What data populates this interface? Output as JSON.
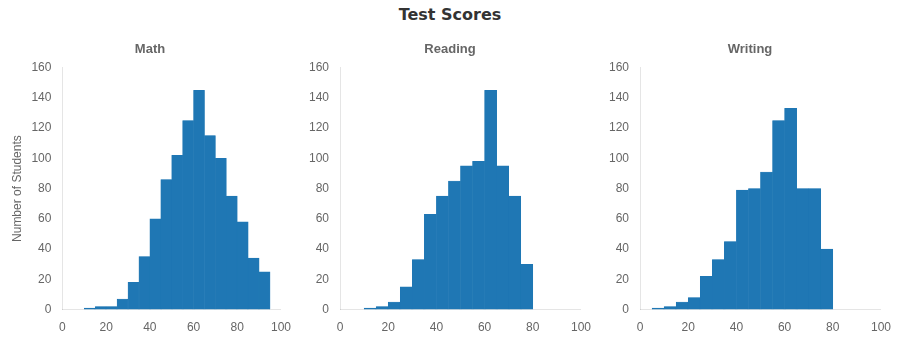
{
  "title": "Test Scores",
  "chart_data": [
    {
      "type": "histogram",
      "title": "Math",
      "ylabel": "Number of Students",
      "bins": [
        0,
        5,
        10,
        15,
        20,
        25,
        30,
        35,
        40,
        45,
        50,
        55,
        60,
        65,
        70,
        75,
        80,
        85,
        90,
        95,
        100
      ],
      "values": [
        0,
        0,
        1,
        2,
        2,
        7,
        18,
        35,
        60,
        86,
        102,
        125,
        145,
        115,
        100,
        75,
        58,
        34,
        25,
        0
      ],
      "color": "#1f77b4",
      "xlim": [
        0,
        100
      ],
      "ylim": [
        0,
        160
      ],
      "xticks": [
        0,
        20,
        40,
        60,
        80,
        100
      ],
      "yticks": [
        0,
        20,
        40,
        60,
        80,
        100,
        120,
        140,
        160
      ],
      "grid": false
    },
    {
      "type": "histogram",
      "title": "Reading",
      "bins": [
        0,
        5,
        10,
        15,
        20,
        25,
        30,
        35,
        40,
        45,
        50,
        55,
        60,
        65,
        70,
        75,
        80,
        85,
        90,
        95,
        100
      ],
      "values": [
        0,
        0,
        1,
        2,
        5,
        15,
        33,
        63,
        75,
        85,
        95,
        98,
        145,
        95,
        75,
        30,
        0,
        0,
        0,
        0
      ],
      "color": "#1f77b4",
      "xlim": [
        0,
        100
      ],
      "ylim": [
        0,
        160
      ],
      "xticks": [
        0,
        20,
        40,
        60,
        80,
        100
      ],
      "yticks": [
        0,
        20,
        40,
        60,
        80,
        100,
        120,
        140,
        160
      ],
      "grid": false
    },
    {
      "type": "histogram",
      "title": "Writing",
      "bins": [
        0,
        5,
        10,
        15,
        20,
        25,
        30,
        35,
        40,
        45,
        50,
        55,
        60,
        65,
        70,
        75,
        80,
        85,
        90,
        95,
        100
      ],
      "values": [
        0,
        1,
        2,
        5,
        8,
        22,
        33,
        45,
        79,
        80,
        91,
        125,
        133,
        80,
        80,
        40,
        0,
        0,
        0,
        0
      ],
      "color": "#1f77b4",
      "xlim": [
        0,
        100
      ],
      "ylim": [
        0,
        160
      ],
      "xticks": [
        0,
        20,
        40,
        60,
        80,
        100
      ],
      "yticks": [
        0,
        20,
        40,
        60,
        80,
        100,
        120,
        140,
        160
      ],
      "grid": false
    }
  ]
}
